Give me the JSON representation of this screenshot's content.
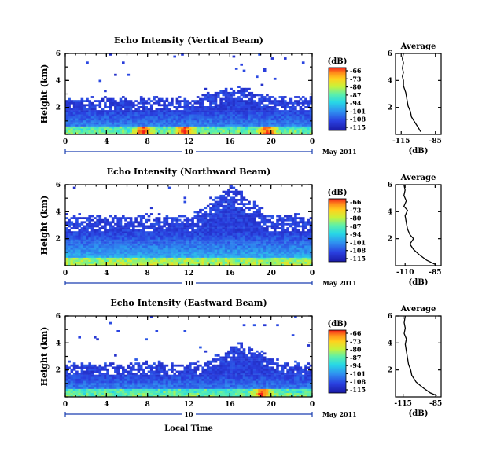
{
  "chart_data": [
    {
      "type": "heatmap",
      "id": "vertical",
      "title": "Echo Intensity (Vertical Beam)",
      "ylabel": "Height (km)",
      "x_ticks": [
        "0",
        "4",
        "8",
        "12",
        "16",
        "20",
        "0"
      ],
      "y_ticks": [
        "6",
        "4",
        "2"
      ],
      "xlim": [
        0,
        24
      ],
      "ylim": [
        0,
        6
      ],
      "date_label": "10",
      "month_label": "May 2011",
      "colorbar": {
        "unit": "(dB)",
        "ticks": [
          "-66",
          "-73",
          "-80",
          "-87",
          "-94",
          "-101",
          "-108",
          "-115"
        ],
        "range": [
          -115,
          -66
        ]
      },
      "field": {
        "base_top_km": 2.6,
        "mid_top_km": 1.7,
        "bulge_center_h": 16.5,
        "bulge_height_km": 0.9,
        "hot_spots_h": [
          7.5,
          11.5,
          19.5
        ]
      },
      "profile": {
        "title": "Average",
        "xlabel": "(dB)",
        "x_ticks": [
          "-115",
          "-85"
        ],
        "y_ticks": [
          "6",
          "4",
          "2"
        ],
        "xlim": [
          -120,
          -80
        ],
        "ylim": [
          0,
          6
        ],
        "points": [
          [
            -98,
            0.2
          ],
          [
            -100,
            0.5
          ],
          [
            -103,
            0.9
          ],
          [
            -106,
            1.3
          ],
          [
            -107,
            1.7
          ],
          [
            -109,
            2.1
          ],
          [
            -110,
            2.6
          ],
          [
            -111,
            3.1
          ],
          [
            -113,
            3.6
          ],
          [
            -113,
            4.0
          ],
          [
            -114,
            4.3
          ],
          [
            -113,
            4.6
          ],
          [
            -114,
            4.9
          ],
          [
            -113,
            5.3
          ],
          [
            -114,
            5.6
          ],
          [
            -113,
            6.0
          ]
        ]
      }
    },
    {
      "type": "heatmap",
      "id": "northward",
      "title": "Echo Intensity (Northward Beam)",
      "ylabel": "Height (km)",
      "x_ticks": [
        "0",
        "4",
        "8",
        "12",
        "16",
        "20",
        "0"
      ],
      "y_ticks": [
        "6",
        "4",
        "2"
      ],
      "xlim": [
        0,
        24
      ],
      "ylim": [
        0,
        6
      ],
      "date_label": "10",
      "month_label": "May 2011",
      "colorbar": {
        "unit": "(dB)",
        "ticks": [
          "-66",
          "-73",
          "-80",
          "-87",
          "-94",
          "-101",
          "-108",
          "-115"
        ],
        "range": [
          -115,
          -66
        ]
      },
      "field": {
        "base_top_km": 3.6,
        "mid_top_km": 2.4,
        "bulge_center_h": 16.0,
        "bulge_height_km": 2.2,
        "hot_spots_h": []
      },
      "profile": {
        "title": "Average",
        "xlabel": "(dB)",
        "x_ticks": [
          "-110",
          "-85"
        ],
        "y_ticks": [
          "6",
          "4",
          "2"
        ],
        "xlim": [
          -118,
          -80
        ],
        "ylim": [
          0,
          6
        ],
        "points": [
          [
            -85,
            0.1
          ],
          [
            -92,
            0.4
          ],
          [
            -98,
            0.8
          ],
          [
            -103,
            1.2
          ],
          [
            -106,
            1.6
          ],
          [
            -103,
            2.0
          ],
          [
            -106,
            2.3
          ],
          [
            -108,
            2.7
          ],
          [
            -109,
            3.2
          ],
          [
            -110,
            3.7
          ],
          [
            -108,
            4.1
          ],
          [
            -111,
            4.4
          ],
          [
            -109,
            4.8
          ],
          [
            -111,
            5.2
          ],
          [
            -110,
            5.6
          ],
          [
            -111,
            6.0
          ]
        ]
      }
    },
    {
      "type": "heatmap",
      "id": "eastward",
      "title": "Echo Intensity (Eastward Beam)",
      "ylabel": "Height (km)",
      "x_ticks": [
        "0",
        "4",
        "8",
        "12",
        "16",
        "20",
        "0"
      ],
      "y_ticks": [
        "6",
        "4",
        "2"
      ],
      "xlim": [
        0,
        24
      ],
      "ylim": [
        0,
        6
      ],
      "date_label": "10",
      "month_label": "May 2011",
      "colorbar": {
        "unit": "(dB)",
        "ticks": [
          "-66",
          "-73",
          "-80",
          "-87",
          "-94",
          "-101",
          "-108",
          "-115"
        ],
        "range": [
          -115,
          -66
        ]
      },
      "field": {
        "base_top_km": 2.4,
        "mid_top_km": 1.6,
        "bulge_center_h": 17.0,
        "bulge_height_km": 1.5,
        "hot_spots_h": [
          19.0
        ]
      },
      "profile": {
        "title": "Average",
        "xlabel": "(dB)",
        "x_ticks": [
          "-115",
          "-85"
        ],
        "y_ticks": [
          "6",
          "4",
          "2"
        ],
        "xlim": [
          -122,
          -80
        ],
        "ylim": [
          0,
          6
        ],
        "points": [
          [
            -84,
            0.1
          ],
          [
            -90,
            0.3
          ],
          [
            -97,
            0.7
          ],
          [
            -103,
            1.1
          ],
          [
            -107,
            1.6
          ],
          [
            -108,
            2.0
          ],
          [
            -110,
            2.4
          ],
          [
            -111,
            2.9
          ],
          [
            -112,
            3.4
          ],
          [
            -113,
            3.9
          ],
          [
            -112,
            4.3
          ],
          [
            -114,
            4.7
          ],
          [
            -113,
            5.1
          ],
          [
            -114,
            5.5
          ],
          [
            -113,
            6.0
          ]
        ]
      }
    }
  ],
  "common": {
    "xtitle": "Local Time"
  }
}
